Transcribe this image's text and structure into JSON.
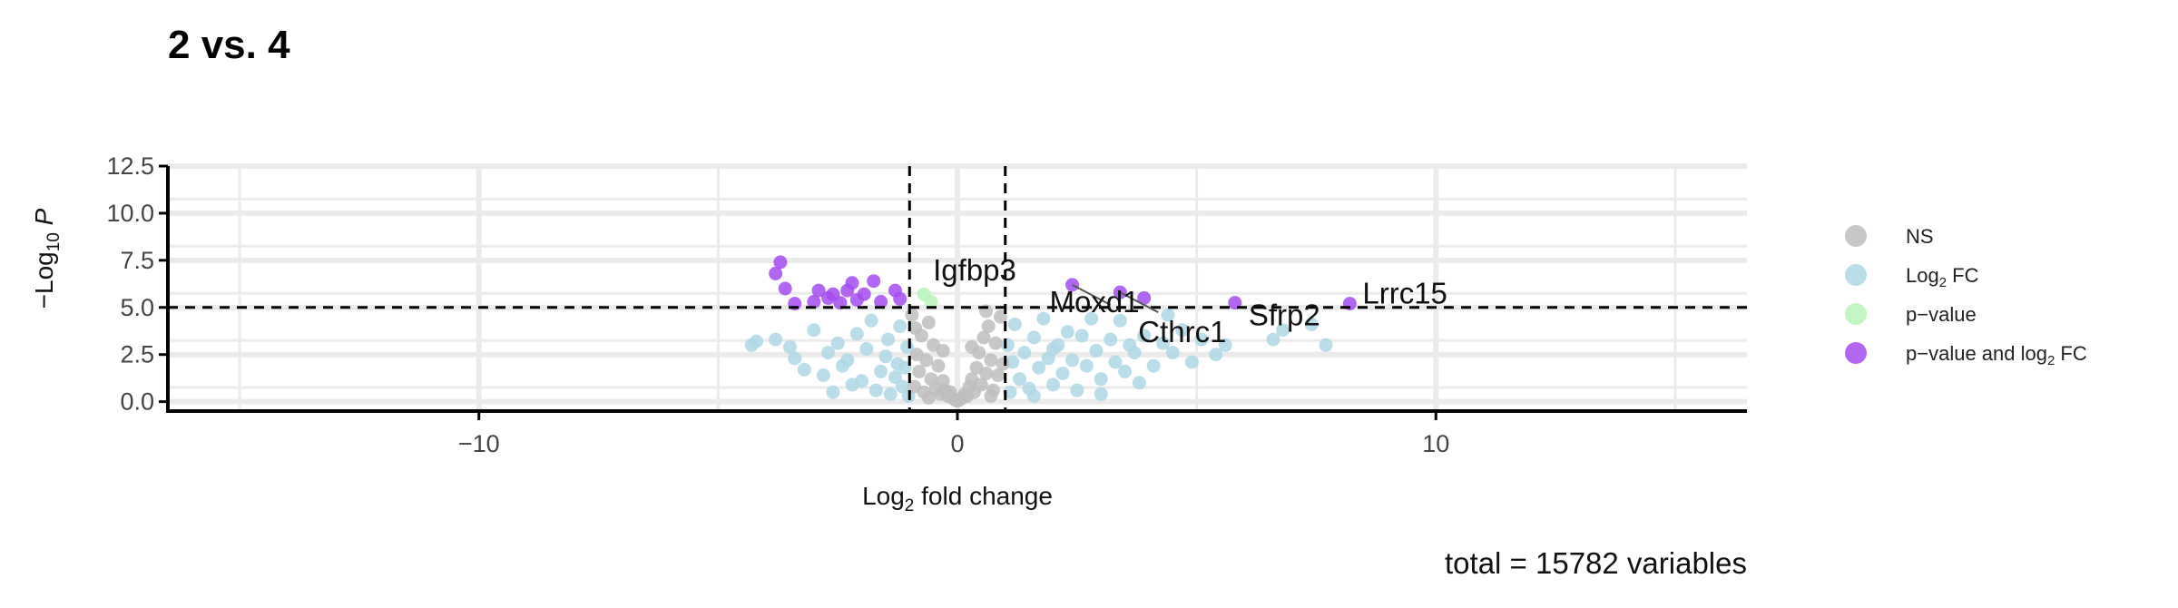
{
  "chart_data": {
    "type": "scatter",
    "title": "2 vs. 4",
    "caption": "total = 15782 variables",
    "xlabel": {
      "prefix": "Log",
      "sub": "2",
      "suffix": " fold change"
    },
    "ylabel": {
      "prefix": "−Log",
      "sub": "10",
      "suffix": " P"
    },
    "xlim": [
      -16.5,
      16.5
    ],
    "ylim": [
      -0.5,
      12.5
    ],
    "x_ticks": [
      -10,
      0,
      10
    ],
    "x_tick_labels": [
      "−10",
      "0",
      "10"
    ],
    "y_ticks": [
      0,
      2.5,
      5,
      7.5,
      10,
      12.5
    ],
    "y_tick_labels": [
      "0.0",
      "2.5",
      "5.0",
      "7.5",
      "10.0",
      "12.5"
    ],
    "fc_cutoff": 1,
    "p_cutoff": 5,
    "grid": true,
    "legend_position": "right",
    "legend": [
      {
        "key": "ns",
        "parts": [
          {
            "t": "NS"
          }
        ]
      },
      {
        "key": "fc",
        "parts": [
          {
            "t": "Log"
          },
          {
            "t": "2",
            "sub": true
          },
          {
            "t": " FC"
          }
        ]
      },
      {
        "key": "p",
        "parts": [
          {
            "t": "p−value"
          }
        ]
      },
      {
        "key": "both",
        "parts": [
          {
            "t": "p−value and log"
          },
          {
            "t": "2",
            "sub": true
          },
          {
            "t": " FC"
          }
        ]
      }
    ],
    "colors": {
      "ns": "#BEBEBE",
      "fc": "#ADD8E6",
      "p": "#B7F5B7",
      "both": "#A54CF0"
    },
    "series": [
      {
        "key": "both",
        "points": [
          [
            -3.7,
            7.4
          ],
          [
            -3.8,
            6.8
          ],
          [
            -3.6,
            6.0
          ],
          [
            -3.4,
            5.2
          ],
          [
            -2.9,
            5.9
          ],
          [
            -2.7,
            5.5
          ],
          [
            -2.6,
            5.7
          ],
          [
            -2.45,
            5.25
          ],
          [
            -2.2,
            6.3
          ],
          [
            -2.1,
            5.4
          ],
          [
            -1.95,
            5.7
          ],
          [
            -1.75,
            6.4
          ],
          [
            -1.6,
            5.3
          ],
          [
            -1.3,
            5.9
          ],
          [
            -1.2,
            5.45
          ],
          [
            -3.0,
            5.3
          ],
          [
            -2.3,
            5.9
          ],
          [
            2.4,
            6.2
          ],
          [
            3.4,
            5.8
          ],
          [
            3.9,
            5.5
          ],
          [
            5.8,
            5.25
          ],
          [
            8.2,
            5.2
          ]
        ]
      },
      {
        "key": "p",
        "points": [
          [
            -0.7,
            5.7
          ],
          [
            -0.55,
            5.3
          ]
        ]
      },
      {
        "key": "fc",
        "points": [
          [
            -4.2,
            3.2
          ],
          [
            -4.3,
            3.0
          ],
          [
            -3.8,
            3.3
          ],
          [
            -3.5,
            2.9
          ],
          [
            -3.4,
            2.3
          ],
          [
            -3.2,
            1.7
          ],
          [
            -3.0,
            3.8
          ],
          [
            -2.8,
            1.4
          ],
          [
            -2.7,
            2.6
          ],
          [
            -2.5,
            3.1
          ],
          [
            -2.4,
            1.9
          ],
          [
            -2.3,
            2.2
          ],
          [
            -2.2,
            0.9
          ],
          [
            -2.1,
            3.6
          ],
          [
            -2.0,
            1.1
          ],
          [
            -1.9,
            2.8
          ],
          [
            -1.8,
            4.3
          ],
          [
            -1.7,
            0.6
          ],
          [
            -1.6,
            1.6
          ],
          [
            -1.5,
            2.4
          ],
          [
            -1.45,
            3.3
          ],
          [
            -1.4,
            0.4
          ],
          [
            -1.3,
            1.3
          ],
          [
            -1.25,
            2.0
          ],
          [
            -1.2,
            4.0
          ],
          [
            -1.15,
            0.8
          ],
          [
            -1.1,
            1.8
          ],
          [
            -1.05,
            2.9
          ],
          [
            -1.02,
            0.3
          ],
          [
            -2.6,
            0.5
          ],
          [
            1.05,
            3.0
          ],
          [
            1.1,
            0.5
          ],
          [
            1.15,
            2.1
          ],
          [
            1.2,
            4.1
          ],
          [
            1.3,
            1.2
          ],
          [
            1.4,
            2.6
          ],
          [
            1.5,
            0.7
          ],
          [
            1.6,
            3.4
          ],
          [
            1.7,
            1.8
          ],
          [
            1.8,
            4.4
          ],
          [
            1.9,
            2.3
          ],
          [
            2.0,
            0.9
          ],
          [
            2.1,
            3.0
          ],
          [
            2.2,
            1.5
          ],
          [
            2.3,
            3.7
          ],
          [
            2.4,
            2.2
          ],
          [
            2.5,
            0.6
          ],
          [
            2.6,
            3.5
          ],
          [
            2.7,
            1.9
          ],
          [
            2.8,
            4.4
          ],
          [
            2.9,
            2.7
          ],
          [
            3.0,
            1.2
          ],
          [
            3.2,
            3.3
          ],
          [
            3.3,
            2.1
          ],
          [
            3.4,
            4.3
          ],
          [
            3.5,
            1.6
          ],
          [
            3.6,
            3.0
          ],
          [
            3.7,
            2.6
          ],
          [
            3.9,
            3.5
          ],
          [
            4.1,
            1.9
          ],
          [
            4.3,
            3.1
          ],
          [
            4.5,
            2.6
          ],
          [
            4.7,
            3.8
          ],
          [
            4.9,
            2.1
          ],
          [
            5.1,
            3.3
          ],
          [
            5.4,
            2.5
          ],
          [
            5.6,
            3.0
          ],
          [
            6.6,
            3.3
          ],
          [
            6.8,
            3.8
          ],
          [
            7.4,
            4.1
          ],
          [
            7.7,
            3.0
          ],
          [
            3.0,
            0.4
          ],
          [
            2.0,
            2.8
          ],
          [
            1.6,
            0.3
          ],
          [
            3.8,
            1.0
          ],
          [
            4.4,
            4.6
          ]
        ]
      },
      {
        "key": "ns",
        "points": [
          [
            -0.9,
            0.8
          ],
          [
            -0.85,
            2.5
          ],
          [
            -0.8,
            1.6
          ],
          [
            -0.75,
            3.5
          ],
          [
            -0.7,
            0.5
          ],
          [
            -0.65,
            2.2
          ],
          [
            -0.6,
            4.2
          ],
          [
            -0.55,
            1.2
          ],
          [
            -0.5,
            3.0
          ],
          [
            -0.45,
            0.7
          ],
          [
            -0.4,
            1.9
          ],
          [
            -0.35,
            0.4
          ],
          [
            -0.3,
            1.1
          ],
          [
            -0.25,
            0.6
          ],
          [
            -0.2,
            0.3
          ],
          [
            -0.15,
            0.5
          ],
          [
            -0.1,
            0.2
          ],
          [
            -0.05,
            0.1
          ],
          [
            0.0,
            0.05
          ],
          [
            0.05,
            0.1
          ],
          [
            0.1,
            0.2
          ],
          [
            0.15,
            0.4
          ],
          [
            0.2,
            0.3
          ],
          [
            0.25,
            0.8
          ],
          [
            0.3,
            1.2
          ],
          [
            0.35,
            0.5
          ],
          [
            0.4,
            1.8
          ],
          [
            0.45,
            2.6
          ],
          [
            0.5,
            0.9
          ],
          [
            0.55,
            3.4
          ],
          [
            0.6,
            1.5
          ],
          [
            0.65,
            4.0
          ],
          [
            0.7,
            2.2
          ],
          [
            0.75,
            0.6
          ],
          [
            0.8,
            3.1
          ],
          [
            0.85,
            1.4
          ],
          [
            0.9,
            4.5
          ],
          [
            0.95,
            2.0
          ],
          [
            -0.95,
            4.6
          ],
          [
            -0.88,
            3.9
          ],
          [
            0.6,
            4.8
          ],
          [
            -0.3,
            2.7
          ],
          [
            0.3,
            2.9
          ],
          [
            -0.6,
            0.2
          ],
          [
            0.7,
            0.3
          ]
        ]
      }
    ],
    "annotations": [
      {
        "text": "Igfbp3",
        "x": -0.7,
        "y": 5.7
      },
      {
        "text": "Moxd1",
        "x": 2.4,
        "y": 6.2
      },
      {
        "text": "Cthrc1",
        "x": 3.4,
        "y": 5.8
      },
      {
        "text": "Sfrp2",
        "x": 5.8,
        "y": 5.25
      },
      {
        "text": "Lrrc15",
        "x": 8.2,
        "y": 5.2
      }
    ]
  }
}
